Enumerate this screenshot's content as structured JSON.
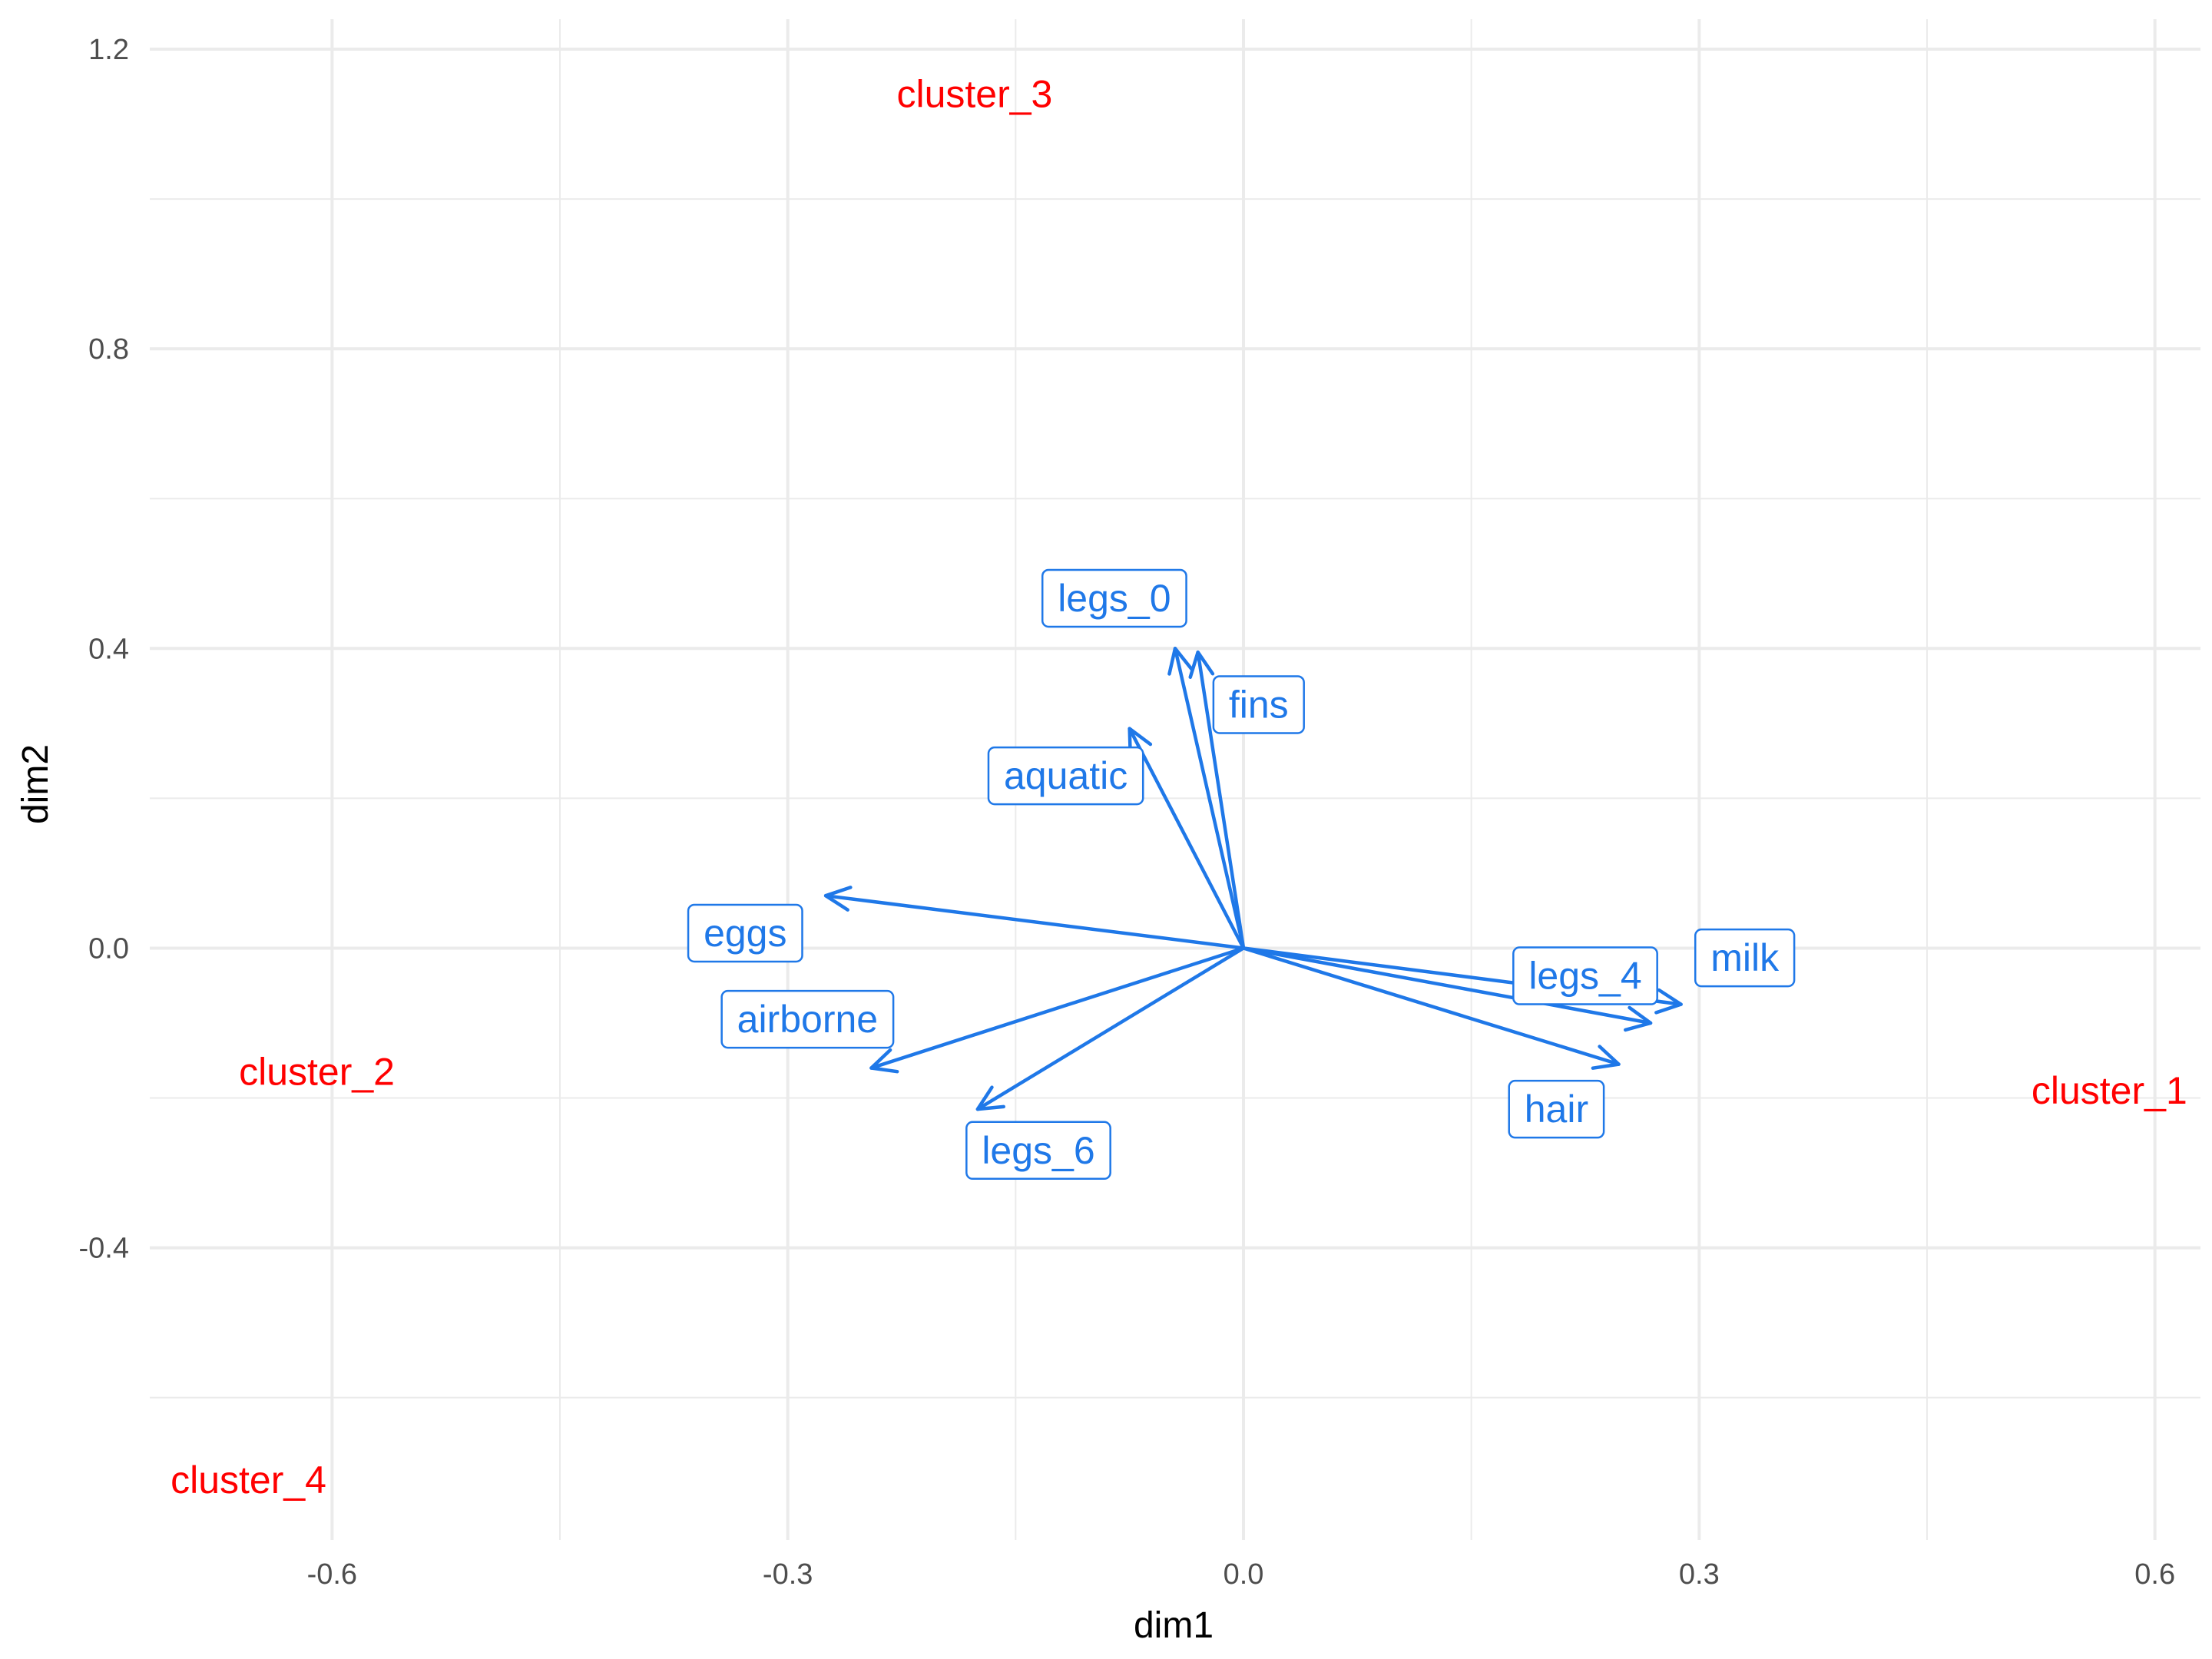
{
  "chart_data": {
    "type": "scatter",
    "title": "",
    "xlabel": "dim1",
    "ylabel": "dim2",
    "xlim": [
      -0.72,
      0.63
    ],
    "ylim": [
      -0.79,
      1.24
    ],
    "x_ticks": [
      -0.6,
      -0.3,
      0.0,
      0.3,
      0.6
    ],
    "x_tick_labels": [
      "-0.6",
      "-0.3",
      "0.0",
      "0.3",
      "0.6"
    ],
    "y_ticks": [
      -0.4,
      0.0,
      0.4,
      0.8,
      1.2
    ],
    "y_tick_labels": [
      "-0.4",
      "0.0",
      "0.4",
      "0.8",
      "1.2"
    ],
    "grid": true,
    "colors": {
      "clusters": "#ff0000",
      "variables": "#1f78e8",
      "grid": "#ebebeb",
      "axis_text": "#4d4d4d"
    },
    "clusters": [
      {
        "label": "cluster_1",
        "x": 0.57,
        "y": -0.19
      },
      {
        "label": "cluster_2",
        "x": -0.61,
        "y": -0.165
      },
      {
        "label": "cluster_3",
        "x": -0.177,
        "y": 1.14
      },
      {
        "label": "cluster_4",
        "x": -0.655,
        "y": -0.71
      }
    ],
    "variables": [
      {
        "label": "legs_0",
        "x": -0.045,
        "y": 0.4,
        "lx": -0.085,
        "ly": 0.467
      },
      {
        "label": "fins",
        "x": -0.03,
        "y": 0.395,
        "lx": 0.01,
        "ly": 0.325
      },
      {
        "label": "aquatic",
        "x": -0.075,
        "y": 0.293,
        "lx": -0.117,
        "ly": 0.23
      },
      {
        "label": "eggs",
        "x": -0.275,
        "y": 0.07,
        "lx": -0.328,
        "ly": 0.02
      },
      {
        "label": "airborne",
        "x": -0.245,
        "y": -0.16,
        "lx": -0.287,
        "ly": -0.095
      },
      {
        "label": "legs_6",
        "x": -0.175,
        "y": -0.215,
        "lx": -0.135,
        "ly": -0.27
      },
      {
        "label": "legs_4",
        "x": 0.268,
        "y": -0.1,
        "lx": 0.225,
        "ly": -0.037
      },
      {
        "label": "milk",
        "x": 0.288,
        "y": -0.075,
        "lx": 0.33,
        "ly": -0.013
      },
      {
        "label": "hair",
        "x": 0.247,
        "y": -0.155,
        "lx": 0.206,
        "ly": -0.215
      }
    ]
  }
}
